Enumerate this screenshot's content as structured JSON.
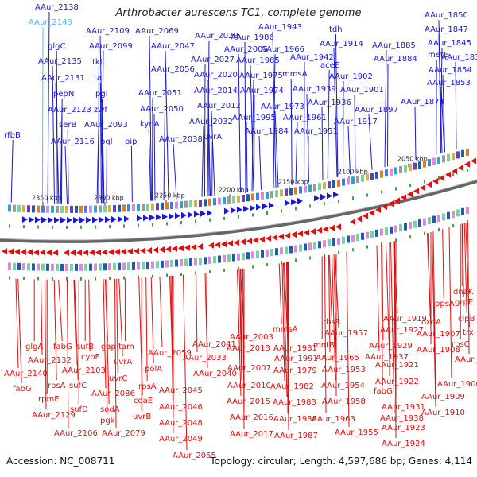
{
  "title": "Arthrobacter aurescens TC1, complete genome",
  "footer": {
    "accession": "Accession: NC_008711",
    "summary": "Topology: circular; Length: 4,597,686 bp; Genes: 4,114"
  },
  "colors": {
    "forward": "#1a1acc",
    "reverse": "#dd1111",
    "highlight": "#55bbee",
    "backbone": "#666666",
    "tick": "#33aa33"
  },
  "scale_ticks": [
    "2350 kbp",
    "2300 kbp",
    "2250 kbp",
    "2200 kbp",
    "2150 kbp",
    "2100 kbp",
    "2050 kbp"
  ],
  "forward_labels": [
    "AAur_2138",
    "AAur_2143",
    "glgC",
    "AAur_2135",
    "AAur_2131",
    "pepN",
    "AAur_2123",
    "serB",
    "AAur_2116",
    "AAur_2109",
    "AAur_2099",
    "tkt",
    "tal",
    "pgi",
    "zwf",
    "AAur_2093",
    "pgl",
    "pip",
    "AAur_2069",
    "AAur_2047",
    "AAur_2056",
    "AAur_2051",
    "AAur_2050",
    "kynA",
    "AAur_2038",
    "AAur_2029",
    "AAur_2027",
    "AAur_2020",
    "AAur_2014",
    "AAur_2012",
    "AAur_2032",
    "uvrA",
    "AAur_1986",
    "AAur_2005",
    "AAur_1985",
    "AAur_1975",
    "AAur_1974",
    "AAur_1995",
    "AAur_1984",
    "AAur_1943",
    "AAur_1966",
    "AAur_1942",
    "mmsA",
    "AAur_1939",
    "AAur_1973",
    "AAur_1961",
    "AAur_1951",
    "AAur_1936",
    "tdh",
    "AAur_1914",
    "aceE",
    "AAur_1902",
    "AAur_1901",
    "AAur_1917",
    "AAur_1897",
    "AAur_1885",
    "AAur_1884",
    "AAur_1874",
    "AAur_1850",
    "AAur_1847",
    "AAur_1845",
    "metE",
    "AAur_1833",
    "AAur_1854",
    "AAur_1853",
    "rfbB"
  ],
  "reverse_labels": [
    "glgA",
    "AAur_2132",
    "AAur_2140",
    "fabG",
    "rpmE",
    "AAur_2129",
    "rbsA",
    "fabG",
    "sufB",
    "cyoE",
    "AAur_2103",
    "sufC",
    "sufD",
    "AAur_2106",
    "gap",
    "uvrA",
    "tam",
    "uvrC",
    "AAur_2086",
    "sodA",
    "pgk",
    "AAur_2079",
    "AAur_2059",
    "coaE",
    "uvrB",
    "rpsA",
    "polA",
    "AAur_2045",
    "AAur_2046",
    "AAur_2048",
    "AAur_2049",
    "AAur_2055",
    "AAur_2041",
    "AAur_2033",
    "AAur_2040",
    "AAur_2003",
    "AAur_2013",
    "AAur_2007",
    "AAur_2010",
    "AAur_2015",
    "AAur_2016",
    "AAur_2017",
    "mmsA",
    "AAur_1981",
    "AAur_1991",
    "AAur_1979",
    "AAur_1982",
    "AAur_1983",
    "AAur_1988",
    "AAur_1987",
    "rbsR",
    "AAur_1957",
    "mntB",
    "AAur_1965",
    "AAur_1953",
    "AAur_1954",
    "AAur_1958",
    "AAur_1963",
    "AAur_1955",
    "AAur_1919",
    "AAur_1927",
    "AAur_1929",
    "AAur_1937",
    "AAur_1921",
    "AAur_1922",
    "fabG",
    "AAur_1931",
    "AAur_1938",
    "AAur_1923",
    "AAur_1924",
    "oxdA",
    "AAur_1907",
    "AAur_1908",
    "ppsA",
    "AAur_1909",
    "AAur_1910",
    "dnaK",
    "grpE",
    "clpB",
    "trx",
    "rbsC",
    "AAur_1895",
    "AAur_1900"
  ]
}
